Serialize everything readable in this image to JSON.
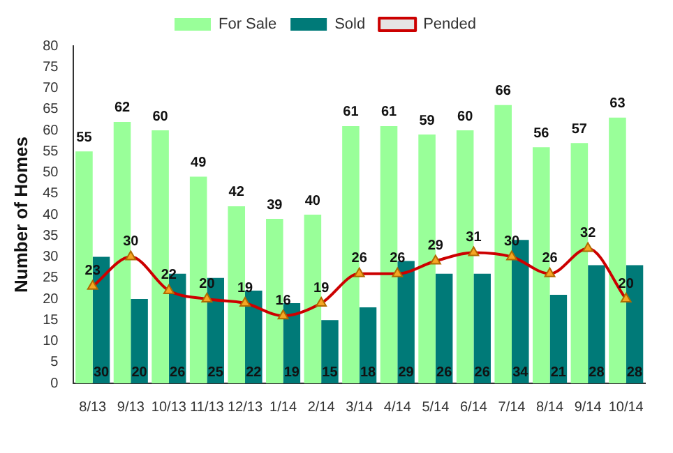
{
  "chart_data": {
    "type": "bar",
    "ylabel": "Number of Homes",
    "categories": [
      "8/13",
      "9/13",
      "10/13",
      "11/13",
      "12/13",
      "1/14",
      "2/14",
      "3/14",
      "4/14",
      "5/14",
      "6/14",
      "7/14",
      "8/14",
      "9/14",
      "10/14"
    ],
    "series": [
      {
        "name": "For Sale",
        "color": "#99ff99",
        "values": [
          55,
          62,
          60,
          49,
          42,
          39,
          40,
          61,
          61,
          59,
          60,
          66,
          56,
          57,
          63
        ]
      },
      {
        "name": "Sold",
        "color": "#007a78",
        "values": [
          30,
          20,
          26,
          25,
          22,
          19,
          15,
          18,
          29,
          26,
          26,
          34,
          21,
          28,
          28
        ]
      },
      {
        "name": "Pended",
        "type": "line",
        "color": "#cc0000",
        "values": [
          23,
          30,
          22,
          20,
          19,
          16,
          19,
          26,
          26,
          29,
          31,
          30,
          26,
          32,
          20
        ]
      }
    ],
    "ylim": [
      0,
      80
    ],
    "yticks": [
      0,
      5,
      10,
      15,
      20,
      25,
      30,
      35,
      40,
      45,
      50,
      55,
      60,
      65,
      70,
      75,
      80
    ],
    "grid": false,
    "legend": "top",
    "marker": "triangle",
    "data_labels": true
  }
}
